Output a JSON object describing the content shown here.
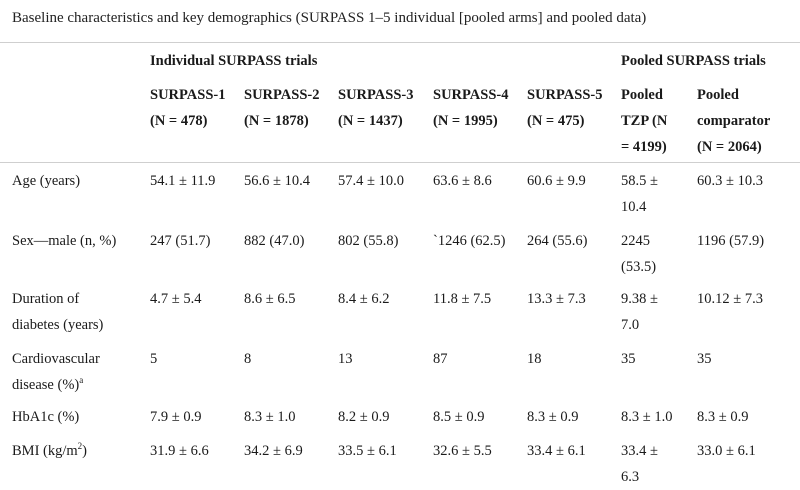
{
  "caption": "Baseline characteristics and key demographics (SURPASS 1–5 individual [pooled arms] and pooled data)",
  "groups": {
    "individual": "Individual SURPASS trials",
    "pooled": "Pooled SURPASS trials"
  },
  "columns": [
    {
      "l1": "SURPASS-1",
      "l2": "(N = 478)"
    },
    {
      "l1": "SURPASS-2",
      "l2": "(N = 1878)"
    },
    {
      "l1": "SURPASS-3",
      "l2": "(N = 1437)"
    },
    {
      "l1": "SURPASS-4",
      "l2": "(N = 1995)"
    },
    {
      "l1": "SURPASS-5",
      "l2": "(N = 475)"
    },
    {
      "l1": "Pooled",
      "l2": "TZP (N",
      "l3": "= 4199)"
    },
    {
      "l1": "Pooled",
      "l2": "comparator",
      "l3": "(N = 2064)"
    }
  ],
  "rows": [
    {
      "label": [
        "Age (years)"
      ],
      "cells": [
        [
          "54.1 ± 11.9"
        ],
        [
          "56.6 ± 10.4"
        ],
        [
          "57.4 ± 10.0"
        ],
        [
          "63.6 ± 8.6"
        ],
        [
          "60.6 ± 9.9"
        ],
        [
          "58.5 ±",
          "10.4"
        ],
        [
          "60.3 ± 10.3"
        ]
      ]
    },
    {
      "label": [
        "Sex—male (n, %)"
      ],
      "cells": [
        [
          "247 (51.7)"
        ],
        [
          "882 (47.0)"
        ],
        [
          "802 (55.8)"
        ],
        [
          "`1246 (62.5)"
        ],
        [
          "264 (55.6)"
        ],
        [
          "2245",
          "(53.5)"
        ],
        [
          "1196 (57.9)"
        ]
      ]
    },
    {
      "label": [
        "Duration of",
        "diabetes (years)"
      ],
      "cells": [
        [
          "4.7 ± 5.4"
        ],
        [
          "8.6 ± 6.5"
        ],
        [
          "8.4 ± 6.2"
        ],
        [
          "11.8 ± 7.5"
        ],
        [
          "13.3 ± 7.3"
        ],
        [
          "9.38 ±",
          "7.0"
        ],
        [
          "10.12 ± 7.3"
        ]
      ]
    },
    {
      "label": [
        "Cardiovascular",
        "disease (%)"
      ],
      "label_sup": "a",
      "cells": [
        [
          "5"
        ],
        [
          "8"
        ],
        [
          "13"
        ],
        [
          "87"
        ],
        [
          "18"
        ],
        [
          "35"
        ],
        [
          "35"
        ]
      ]
    },
    {
      "label": [
        "HbA1c (%)"
      ],
      "cells": [
        [
          "7.9 ± 0.9"
        ],
        [
          "8.3 ± 1.0"
        ],
        [
          "8.2 ± 0.9"
        ],
        [
          "8.5 ± 0.9"
        ],
        [
          "8.3 ± 0.9"
        ],
        [
          "8.3 ± 1.0"
        ],
        [
          "8.3 ± 0.9"
        ]
      ]
    },
    {
      "label": [
        "BMI (kg/m"
      ],
      "label_sup": "2",
      "label_tail": ")",
      "cells": [
        [
          "31.9 ± 6.6"
        ],
        [
          "34.2 ± 6.9"
        ],
        [
          "33.5 ± 6.1"
        ],
        [
          "32.6 ± 5.5"
        ],
        [
          "33.4 ± 6.1"
        ],
        [
          "33.4 ±",
          "6.3"
        ],
        [
          "33.0 ± 6.1"
        ]
      ]
    }
  ]
}
